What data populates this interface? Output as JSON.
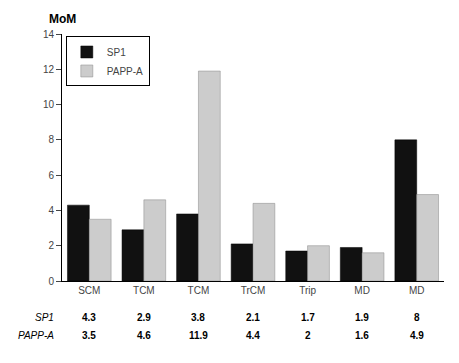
{
  "chart_data": {
    "type": "bar",
    "categories": [
      "SCM",
      "TCM",
      "TCM",
      "TrCM",
      "Trip",
      "MD",
      "MD"
    ],
    "series": [
      {
        "name": "SP1",
        "color": "#111111",
        "values": [
          4.3,
          2.9,
          3.8,
          2.1,
          1.7,
          1.9,
          8
        ]
      },
      {
        "name": "PAPP-A",
        "color": "#cccccc",
        "values": [
          3.5,
          4.6,
          11.9,
          4.4,
          2,
          1.6,
          4.9
        ]
      }
    ],
    "ylabel": "MoM",
    "ylim": [
      0,
      14
    ],
    "yticks": [
      0,
      2,
      4,
      6,
      8,
      10,
      12,
      14
    ],
    "grid": false,
    "legend": "upper left",
    "data_labels": true
  }
}
